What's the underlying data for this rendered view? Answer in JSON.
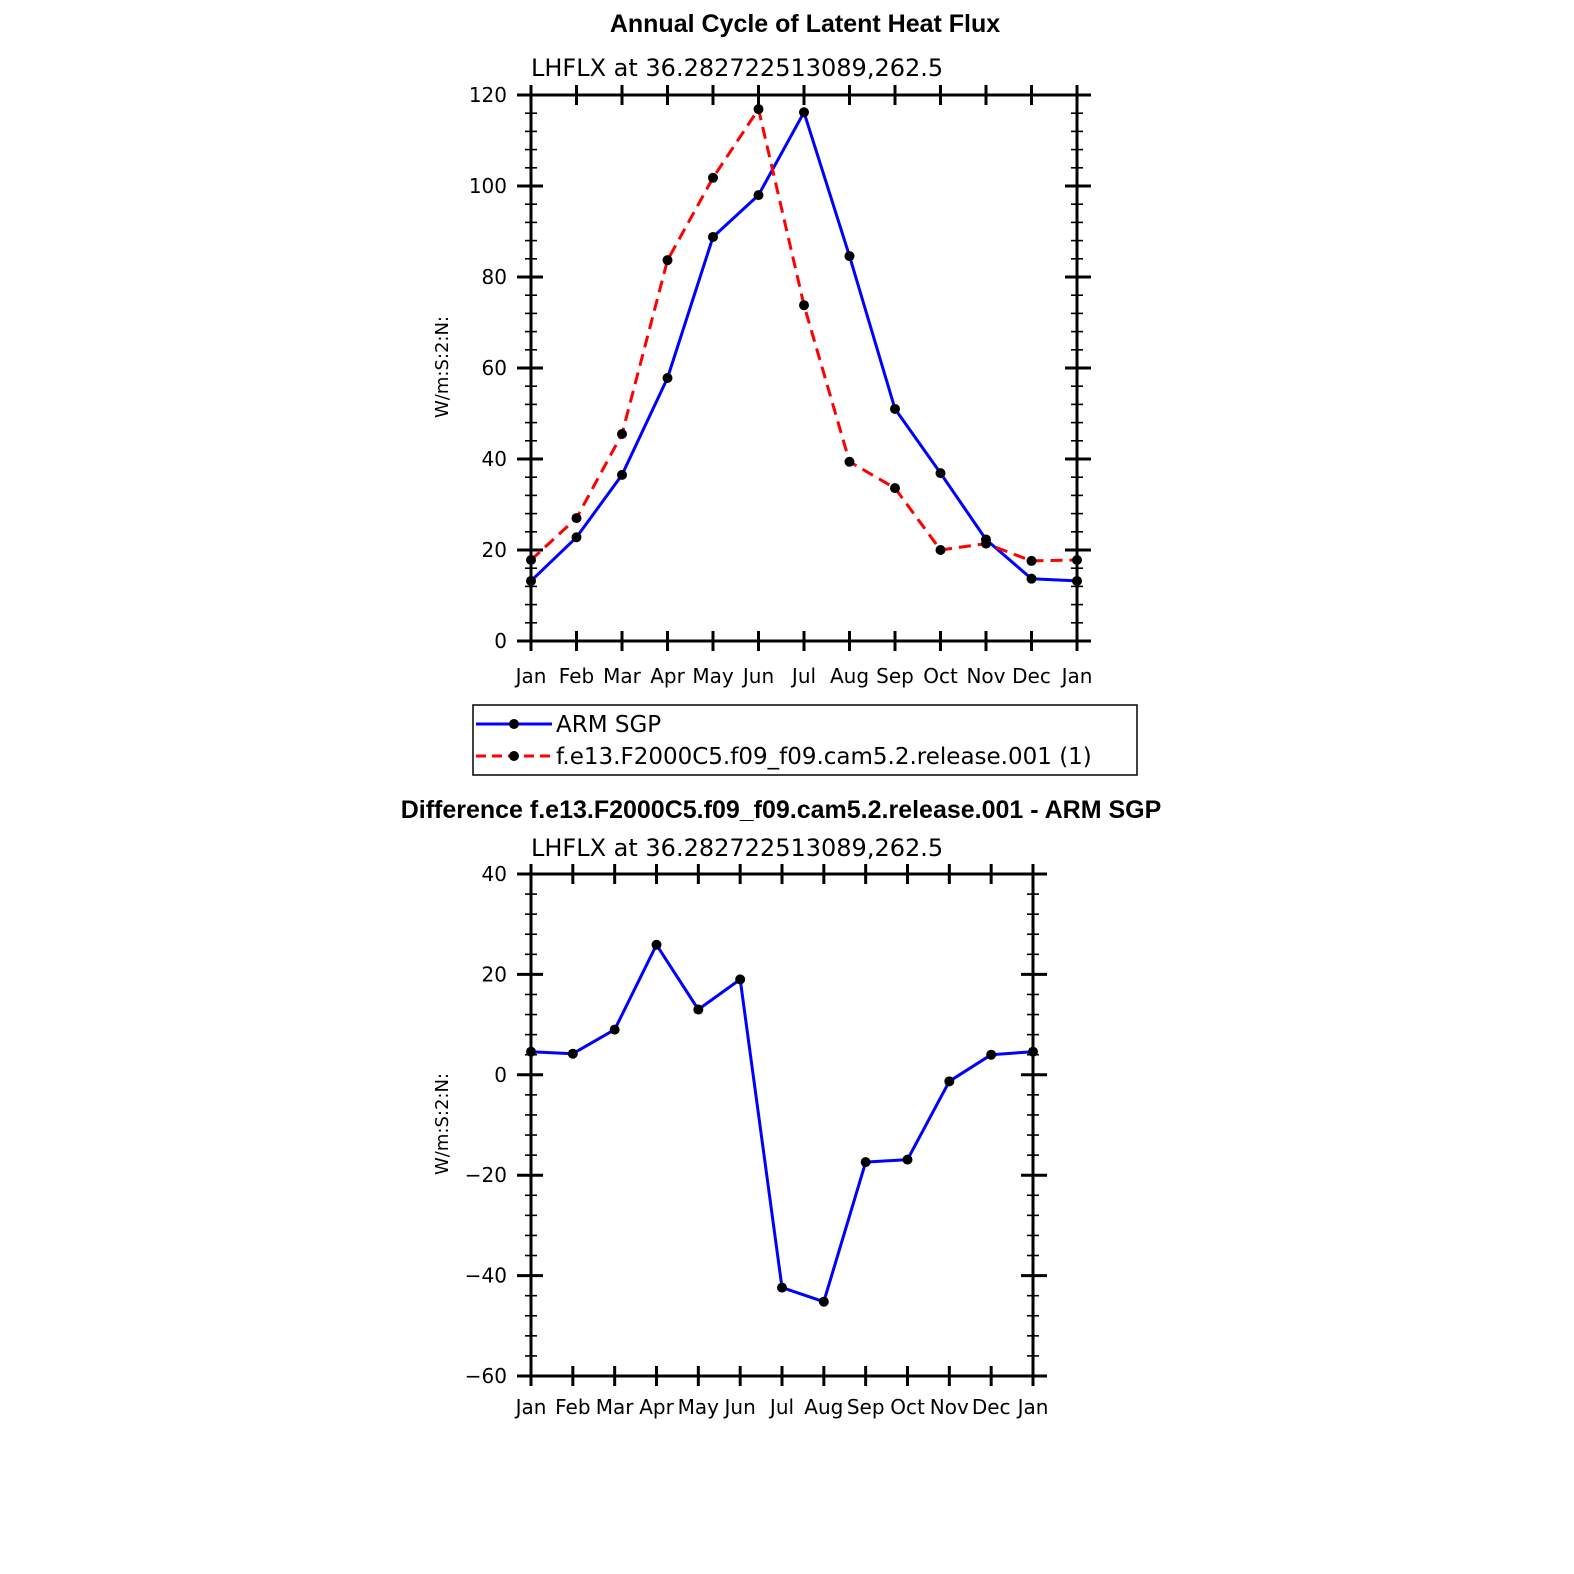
{
  "chart_data": [
    {
      "type": "line",
      "title": "Annual Cycle of Latent Heat Flux",
      "subtitle": "LHFLX  at  36.282722513089,262.5",
      "xlabel": "",
      "ylabel": "W/m:S:2:N:",
      "categories": [
        "Jan",
        "Feb",
        "Mar",
        "Apr",
        "May",
        "Jun",
        "Jul",
        "Aug",
        "Sep",
        "Oct",
        "Nov",
        "Dec",
        "Jan"
      ],
      "ylim": [
        0,
        120
      ],
      "yticks": [
        "0",
        "20",
        "40",
        "60",
        "80",
        "100",
        "120"
      ],
      "legend": "bottom",
      "series": [
        {
          "name": "ARM SGP",
          "color": "#0000ff",
          "dash": "solid",
          "values": [
            13.2,
            22.8,
            36.5,
            57.8,
            88.8,
            98.0,
            116.2,
            84.6,
            51.0,
            36.9,
            22.3,
            13.7,
            13.2
          ]
        },
        {
          "name": "f.e13.F2000C5.f09_f09.cam5.2.release.001 (1)",
          "color": "#ff0000",
          "dash": "dashed",
          "values": [
            17.8,
            27.0,
            45.5,
            83.7,
            101.8,
            116.9,
            73.8,
            39.4,
            33.6,
            20.0,
            21.4,
            17.6,
            17.8
          ]
        }
      ]
    },
    {
      "type": "line",
      "title": "Difference f.e13.F2000C5.f09_f09.cam5.2.release.001 - ARM SGP",
      "subtitle": "LHFLX  at  36.282722513089,262.5",
      "xlabel": "",
      "ylabel": "W/m:S:2:N:",
      "categories": [
        "Jan",
        "Feb",
        "Mar",
        "Apr",
        "May",
        "Jun",
        "Jul",
        "Aug",
        "Sep",
        "Oct",
        "Nov",
        "Dec",
        "Jan"
      ],
      "ylim": [
        -60,
        40
      ],
      "yticks": [
        "−60",
        "−40",
        "−20",
        "0",
        "20",
        "40"
      ],
      "series": [
        {
          "name": "Difference",
          "color": "#0000ff",
          "dash": "solid",
          "values": [
            4.6,
            4.2,
            9.0,
            25.9,
            13.0,
            19.0,
            -42.4,
            -45.2,
            -17.4,
            -16.9,
            -1.3,
            4.0,
            4.6
          ]
        }
      ]
    }
  ]
}
